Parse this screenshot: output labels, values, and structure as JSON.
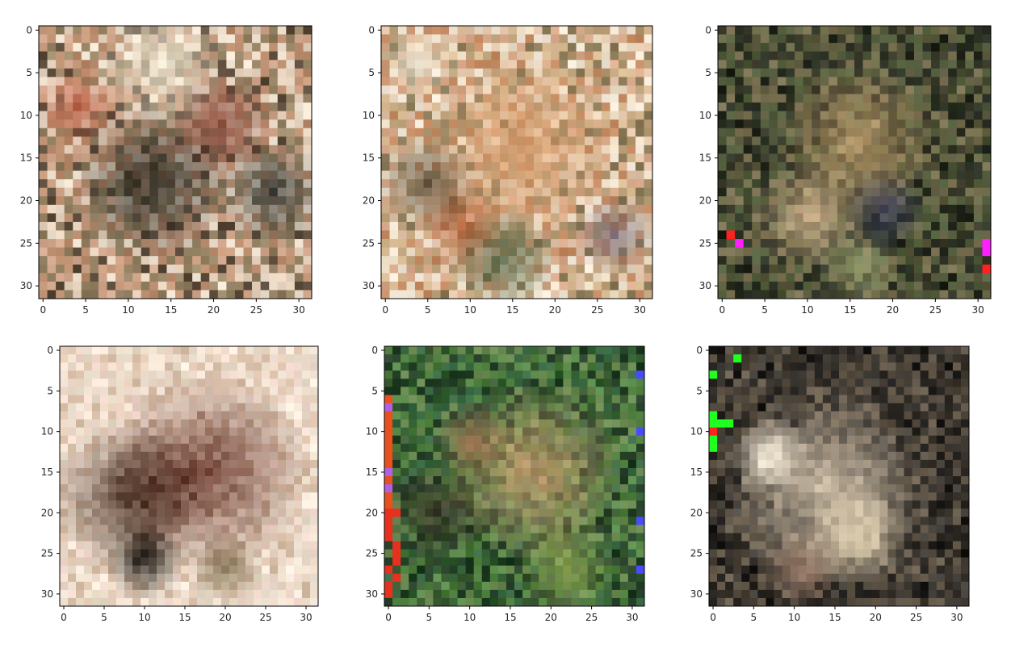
{
  "chart_data": [
    {
      "type": "heatmap",
      "title": "",
      "xlabel": "",
      "ylabel": "",
      "xlim": [
        -0.5,
        31.5
      ],
      "ylim": [
        31.5,
        -0.5
      ],
      "xticks": [
        0,
        5,
        10,
        15,
        20,
        25,
        30
      ],
      "yticks": [
        0,
        5,
        10,
        15,
        20,
        25,
        30
      ],
      "grid": false,
      "palette": [
        "#b88a6c",
        "#e6d2bd",
        "#9c8a6a",
        "#5a4a3a",
        "#d1a78e",
        "#c79a7c",
        "#8d7a5c",
        "#efe2d0"
      ],
      "blobs": [
        {
          "x": 13,
          "y": 18,
          "r": 6,
          "color": "#2e2c24"
        },
        {
          "x": 27,
          "y": 19,
          "r": 4,
          "color": "#3b3f3a"
        },
        {
          "x": 14,
          "y": 4,
          "r": 5,
          "color": "#efe6d2"
        },
        {
          "x": 4,
          "y": 9,
          "r": 3,
          "color": "#c0654a"
        },
        {
          "x": 21,
          "y": 11,
          "r": 4,
          "color": "#8a4a3c"
        }
      ],
      "special_pixels": []
    },
    {
      "type": "heatmap",
      "title": "",
      "xlabel": "",
      "ylabel": "",
      "xlim": [
        -0.5,
        31.5
      ],
      "ylim": [
        31.5,
        -0.5
      ],
      "xticks": [
        0,
        5,
        10,
        15,
        20,
        25,
        30
      ],
      "yticks": [
        0,
        5,
        10,
        15,
        20,
        25,
        30
      ],
      "grid": false,
      "palette": [
        "#e0c3a8",
        "#d8a98a",
        "#c48a62",
        "#8a7a58",
        "#efe0c8",
        "#b59a74",
        "#d6b890",
        "#f2e7d6"
      ],
      "blobs": [
        {
          "x": 16,
          "y": 14,
          "r": 7,
          "color": "#d9a070"
        },
        {
          "x": 5,
          "y": 18,
          "r": 4,
          "color": "#6a5a44"
        },
        {
          "x": 9,
          "y": 23,
          "r": 3,
          "color": "#b8643c"
        },
        {
          "x": 14,
          "y": 27,
          "r": 4,
          "color": "#5a6a4a"
        },
        {
          "x": 4,
          "y": 4,
          "r": 3,
          "color": "#f4ead8"
        },
        {
          "x": 27,
          "y": 24,
          "r": 3,
          "color": "#7a6a72"
        }
      ],
      "special_pixels": []
    },
    {
      "type": "heatmap",
      "title": "",
      "xlabel": "",
      "ylabel": "",
      "xlim": [
        -0.5,
        31.5
      ],
      "ylim": [
        31.5,
        -0.5
      ],
      "xticks": [
        0,
        5,
        10,
        15,
        20,
        25,
        30
      ],
      "yticks": [
        0,
        5,
        10,
        15,
        20,
        25,
        30
      ],
      "grid": false,
      "palette": [
        "#2c3224",
        "#4a5236",
        "#6a6a48",
        "#3a3a2a",
        "#5c5a3e",
        "#7a7052",
        "#1e2219",
        "#54603e"
      ],
      "blobs": [
        {
          "x": 16,
          "y": 13,
          "r": 6,
          "color": "#b89a6a"
        },
        {
          "x": 10,
          "y": 22,
          "r": 4,
          "color": "#d8b890"
        },
        {
          "x": 19,
          "y": 21,
          "r": 3,
          "color": "#3a3e5a"
        },
        {
          "x": 16,
          "y": 28,
          "r": 3,
          "color": "#9aa070"
        }
      ],
      "special_pixels": [
        {
          "x": 1,
          "y": 24,
          "color": "#ff2020"
        },
        {
          "x": 2,
          "y": 25,
          "color": "#ff20ff"
        },
        {
          "x": 31,
          "y": 25,
          "color": "#ff20ff"
        },
        {
          "x": 31,
          "y": 26,
          "color": "#ff20ff"
        },
        {
          "x": 31,
          "y": 28,
          "color": "#ff2020"
        }
      ]
    },
    {
      "type": "heatmap",
      "title": "",
      "xlabel": "",
      "ylabel": "",
      "xlim": [
        -0.5,
        31.5
      ],
      "ylim": [
        31.5,
        -0.5
      ],
      "xticks": [
        0,
        5,
        10,
        15,
        20,
        25,
        30
      ],
      "yticks": [
        0,
        5,
        10,
        15,
        20,
        25,
        30
      ],
      "grid": false,
      "palette": [
        "#f2dfcf",
        "#ead4c2",
        "#f6eadc",
        "#e2c8b2",
        "#efe2d2",
        "#d8bfa8",
        "#f0d8cc",
        "#e8dcc8"
      ],
      "blobs": [
        {
          "x": 18,
          "y": 15,
          "r": 8,
          "color": "#6a3a2e"
        },
        {
          "x": 8,
          "y": 18,
          "r": 6,
          "color": "#4a3428"
        },
        {
          "x": 10,
          "y": 26,
          "r": 3,
          "color": "#1e1c16"
        },
        {
          "x": 20,
          "y": 27,
          "r": 3,
          "color": "#8a7a5a"
        }
      ],
      "special_pixels": []
    },
    {
      "type": "heatmap",
      "title": "",
      "xlabel": "",
      "ylabel": "",
      "xlim": [
        -0.5,
        31.5
      ],
      "ylim": [
        31.5,
        -0.5
      ],
      "xticks": [
        0,
        5,
        10,
        15,
        20,
        25,
        30
      ],
      "yticks": [
        0,
        5,
        10,
        15,
        20,
        25,
        30
      ],
      "grid": false,
      "palette": [
        "#2e5a2e",
        "#4a7a3a",
        "#3a6a44",
        "#5a8a4a",
        "#26402a",
        "#6a8a52",
        "#3e5e36",
        "#1e3a22"
      ],
      "blobs": [
        {
          "x": 18,
          "y": 15,
          "r": 7,
          "color": "#c8a070"
        },
        {
          "x": 6,
          "y": 20,
          "r": 4,
          "color": "#3a3428"
        },
        {
          "x": 10,
          "y": 11,
          "r": 3,
          "color": "#8a6a4a"
        },
        {
          "x": 22,
          "y": 27,
          "r": 4,
          "color": "#8aa050"
        }
      ],
      "special_pixels": [
        {
          "x": 0,
          "y": 6,
          "color": "#e8501e"
        },
        {
          "x": 0,
          "y": 7,
          "color": "#b060e0"
        },
        {
          "x": 0,
          "y": 8,
          "color": "#e8501e"
        },
        {
          "x": 0,
          "y": 9,
          "color": "#e8501e"
        },
        {
          "x": 0,
          "y": 10,
          "color": "#e8501e"
        },
        {
          "x": 0,
          "y": 11,
          "color": "#e8501e"
        },
        {
          "x": 0,
          "y": 12,
          "color": "#e8501e"
        },
        {
          "x": 0,
          "y": 13,
          "color": "#e8501e"
        },
        {
          "x": 0,
          "y": 14,
          "color": "#e8501e"
        },
        {
          "x": 0,
          "y": 15,
          "color": "#b060e0"
        },
        {
          "x": 0,
          "y": 16,
          "color": "#e8501e"
        },
        {
          "x": 0,
          "y": 17,
          "color": "#b060e0"
        },
        {
          "x": 0,
          "y": 18,
          "color": "#e8501e"
        },
        {
          "x": 0,
          "y": 19,
          "color": "#e8501e"
        },
        {
          "x": 1,
          "y": 20,
          "color": "#e8301e"
        },
        {
          "x": 0,
          "y": 20,
          "color": "#e8301e"
        },
        {
          "x": 0,
          "y": 21,
          "color": "#e8301e"
        },
        {
          "x": 0,
          "y": 22,
          "color": "#e8301e"
        },
        {
          "x": 0,
          "y": 23,
          "color": "#e8301e"
        },
        {
          "x": 1,
          "y": 24,
          "color": "#e8301e"
        },
        {
          "x": 1,
          "y": 25,
          "color": "#e8301e"
        },
        {
          "x": 1,
          "y": 26,
          "color": "#e8301e"
        },
        {
          "x": 0,
          "y": 27,
          "color": "#e8301e"
        },
        {
          "x": 1,
          "y": 28,
          "color": "#e8301e"
        },
        {
          "x": 0,
          "y": 29,
          "color": "#e8301e"
        },
        {
          "x": 0,
          "y": 30,
          "color": "#e8301e"
        },
        {
          "x": 31,
          "y": 3,
          "color": "#4a4aff"
        },
        {
          "x": 31,
          "y": 10,
          "color": "#4a4aff"
        },
        {
          "x": 31,
          "y": 21,
          "color": "#4a4aff"
        },
        {
          "x": 31,
          "y": 27,
          "color": "#4a4aff"
        }
      ]
    },
    {
      "type": "heatmap",
      "title": "",
      "xlabel": "",
      "ylabel": "",
      "xlim": [
        -0.5,
        31.5
      ],
      "ylim": [
        31.5,
        -0.5
      ],
      "xticks": [
        0,
        5,
        10,
        15,
        20,
        25,
        30
      ],
      "yticks": [
        0,
        5,
        10,
        15,
        20,
        25,
        30
      ],
      "grid": false,
      "palette": [
        "#2a2622",
        "#4a4236",
        "#3a342c",
        "#5a5044",
        "#1a1816",
        "#6a5e4e",
        "#44403a",
        "#2e2a26"
      ],
      "blobs": [
        {
          "x": 14,
          "y": 17,
          "r": 8,
          "color": "#d8c8b0"
        },
        {
          "x": 7,
          "y": 13,
          "r": 3,
          "color": "#f0e8d8"
        },
        {
          "x": 18,
          "y": 23,
          "r": 4,
          "color": "#c8b89a"
        },
        {
          "x": 11,
          "y": 27,
          "r": 3,
          "color": "#8a6a5a"
        }
      ],
      "special_pixels": [
        {
          "x": 3,
          "y": 1,
          "color": "#20ff20"
        },
        {
          "x": 0,
          "y": 3,
          "color": "#20ff20"
        },
        {
          "x": 0,
          "y": 8,
          "color": "#20ff20"
        },
        {
          "x": 0,
          "y": 9,
          "color": "#20ff20"
        },
        {
          "x": 1,
          "y": 9,
          "color": "#20ff20"
        },
        {
          "x": 2,
          "y": 9,
          "color": "#20ff20"
        },
        {
          "x": 0,
          "y": 10,
          "color": "#ff2020"
        },
        {
          "x": 0,
          "y": 11,
          "color": "#20ff20"
        },
        {
          "x": 0,
          "y": 12,
          "color": "#20ff20"
        }
      ]
    }
  ]
}
